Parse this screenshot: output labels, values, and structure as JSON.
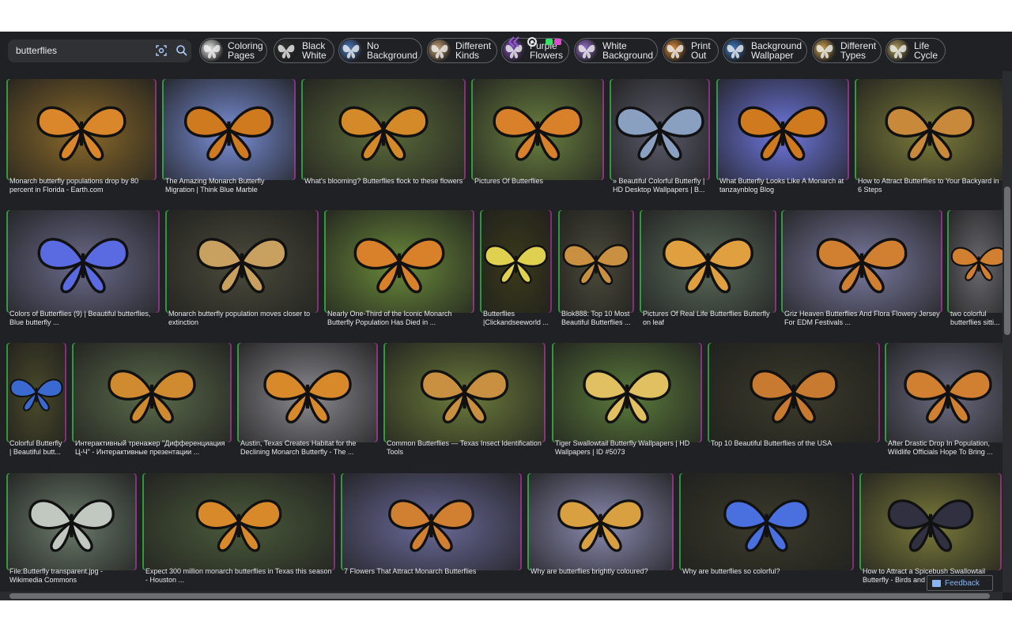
{
  "search": {
    "query": "butterflies"
  },
  "chips": [
    {
      "label": "Coloring\nPages",
      "tone": "#e8e8e8"
    },
    {
      "label": "Black\nWhite",
      "tone": "#333"
    },
    {
      "label": "No\nBackground",
      "tone": "#4a7ac0"
    },
    {
      "label": "Different\nKinds",
      "tone": "#c9a37a"
    },
    {
      "label": "Purple\nFlowers",
      "tone": "#7b4fb0"
    },
    {
      "label": "White\nBackground",
      "tone": "#9a72d0"
    },
    {
      "label": "Print\nOut",
      "tone": "#d88a3a"
    },
    {
      "label": "Background\nWallpaper",
      "tone": "#3f78c0"
    },
    {
      "label": "Different\nTypes",
      "tone": "#c8a050"
    },
    {
      "label": "Life\nCycle",
      "tone": "#b0a060"
    }
  ],
  "rows": [
    {
      "items": [
        {
          "caption": "Monarch butterfly populations drop by 80 percent in Florida - Earth.com",
          "tone": "#8a6a2a",
          "wing": "#d9872a"
        },
        {
          "caption": "The Amazing Monarch Butterfly Migration | Think Blue Marble",
          "tone": "#7a8fd8",
          "wing": "#d07a20"
        },
        {
          "caption": "What's blooming? Butterflies flock to these flowers",
          "tone": "#5a6a3a",
          "wing": "#d58a2a"
        },
        {
          "caption": "Pictures Of Butterflies",
          "tone": "#6a8040",
          "wing": "#d9802a"
        },
        {
          "caption": "» Beautiful Colorful Butterfly | HD Desktop Wallpapers | B...",
          "tone": "#5a5a6a",
          "wing": "#8aa0c0"
        },
        {
          "caption": "What Butterfly Looks Like A Monarch at tanzaynblog Blog",
          "tone": "#6f78e0",
          "wing": "#d07a20"
        },
        {
          "caption": "How to Attract Butterflies to Your Backyard in 6 Steps",
          "tone": "#7a7a3a",
          "wing": "#c88a3a"
        }
      ]
    },
    {
      "items": [
        {
          "caption": "Colors of Butterflies (9) | Beautiful butterflies, Blue butterfly ...",
          "tone": "#6a6a8a",
          "wing": "#5a6ae0"
        },
        {
          "caption": "Monarch butterfly population moves closer to extinction",
          "tone": "#4a4a3a",
          "wing": "#c8a060"
        },
        {
          "caption": "Nearly One-Third of the Iconic Monarch Butterfly Population Has Died in ...",
          "tone": "#6a8a3a",
          "wing": "#d9802a"
        },
        {
          "caption": "Butterflies |Clickandseeworld ...",
          "tone": "#3a3a1a",
          "wing": "#e0d050"
        },
        {
          "caption": "Blok888: Top 10 Most Beautiful Butterflies ...",
          "tone": "#4a4a3a",
          "wing": "#c89040"
        },
        {
          "caption": "Pictures Of Real Life Butterflies Butterfly on leaf",
          "tone": "#5a6a5a",
          "wing": "#e0a040"
        },
        {
          "caption": "Griz Heaven Butterflies And Flora Flowery Jersey For EDM Festivals ...",
          "tone": "#7a7aa0",
          "wing": "#d08030"
        },
        {
          "caption": "two colorful butterflies sitti...",
          "tone": "#6a6a70",
          "wing": "#d08030"
        }
      ]
    },
    {
      "items": [
        {
          "caption": "Colorful Butterfly | Beautiful butt...",
          "tone": "#4a4a2a",
          "wing": "#3a6ad0"
        },
        {
          "caption": "Интерактивный тренажер \"Дифференциация Ц-Ч\" - Интерактивные презентации ...",
          "tone": "#5a6a4a",
          "wing": "#d08a30"
        },
        {
          "caption": "Austin, Texas Creates Habitat for the Declining Monarch Butterfly - The ...",
          "tone": "#8a8a90",
          "wing": "#d88a2a"
        },
        {
          "caption": "Common Butterflies — Texas Insect Identification Tools",
          "tone": "#6a7a3a",
          "wing": "#c89040"
        },
        {
          "caption": "Tiger Swallowtail Butterfly Wallpapers | HD Wallpapers | ID #5073",
          "tone": "#5a7a3a",
          "wing": "#e0c060"
        },
        {
          "caption": "Top 10 Beautiful Butterflies of the USA",
          "tone": "#3a3a2a",
          "wing": "#c87a30"
        },
        {
          "caption": "After Drastic Drop In Population, Wildlife Officials Hope To Bring ...",
          "tone": "#6a6a80",
          "wing": "#d08030"
        }
      ]
    },
    {
      "items": [
        {
          "caption": "File:Butterfly transparent.jpg - Wikimedia Commons",
          "tone": "#6a7a6a",
          "wing": "#c0c8c0"
        },
        {
          "caption": "Expect 300 million monarch butterflies in Texas this season - Houston ...",
          "tone": "#4a5a3a",
          "wing": "#d88a2a"
        },
        {
          "caption": "7 Flowers That Attract Monarch Butterflies",
          "tone": "#6a6a9a",
          "wing": "#d08030"
        },
        {
          "caption": "Why are butterflies brightly coloured?",
          "tone": "#8a8ab0",
          "wing": "#d8a040"
        },
        {
          "caption": "Why are butterflies so colorful?",
          "tone": "#3a3a2a",
          "wing": "#4a70e0"
        },
        {
          "caption": "How to Attract a Spicebush Swallowtail Butterfly - Birds and B...",
          "tone": "#7a7a3a",
          "wing": "#303040"
        }
      ]
    }
  ],
  "feedback": {
    "label": "Feedback"
  }
}
